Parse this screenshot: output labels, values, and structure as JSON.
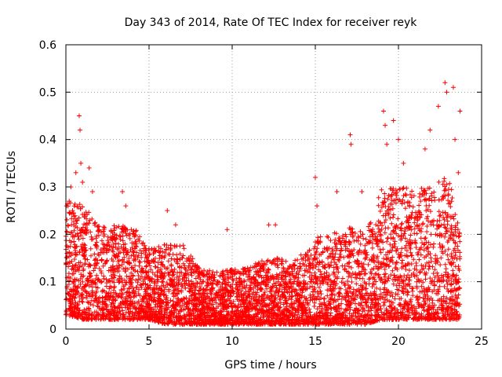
{
  "chart_data": {
    "type": "scatter",
    "title": "Day 343 of 2014, Rate Of TEC Index for receiver reyk",
    "xlabel": "GPS time / hours",
    "ylabel": "ROTI / TECUs",
    "xlim": [
      0,
      25
    ],
    "ylim": [
      0,
      0.6
    ],
    "x_ticks": [
      0,
      5,
      10,
      15,
      20,
      25
    ],
    "x_tick_labels": [
      "0",
      "5",
      "10",
      "15",
      "20",
      "25"
    ],
    "y_ticks": [
      0,
      0.1,
      0.2,
      0.3,
      0.4,
      0.5,
      0.6
    ],
    "y_tick_labels": [
      "0",
      "0.1",
      "0.2",
      "0.3",
      "0.4",
      "0.5",
      "0.6"
    ],
    "grid": true,
    "marker": "+",
    "color": "#ff0000",
    "series": [
      {
        "name": "ROTI",
        "notable_points": [
          {
            "x": 0.2,
            "y": 0.27
          },
          {
            "x": 0.3,
            "y": 0.3
          },
          {
            "x": 0.4,
            "y": 0.25
          },
          {
            "x": 0.6,
            "y": 0.33
          },
          {
            "x": 0.8,
            "y": 0.45
          },
          {
            "x": 0.85,
            "y": 0.42
          },
          {
            "x": 0.9,
            "y": 0.35
          },
          {
            "x": 1.0,
            "y": 0.31
          },
          {
            "x": 1.4,
            "y": 0.34
          },
          {
            "x": 1.6,
            "y": 0.29
          },
          {
            "x": 3.4,
            "y": 0.29
          },
          {
            "x": 3.6,
            "y": 0.26
          },
          {
            "x": 6.1,
            "y": 0.25
          },
          {
            "x": 6.6,
            "y": 0.22
          },
          {
            "x": 9.7,
            "y": 0.21
          },
          {
            "x": 12.2,
            "y": 0.22
          },
          {
            "x": 12.6,
            "y": 0.22
          },
          {
            "x": 15.0,
            "y": 0.32
          },
          {
            "x": 15.1,
            "y": 0.26
          },
          {
            "x": 16.3,
            "y": 0.29
          },
          {
            "x": 17.1,
            "y": 0.41
          },
          {
            "x": 17.15,
            "y": 0.39
          },
          {
            "x": 17.8,
            "y": 0.29
          },
          {
            "x": 19.1,
            "y": 0.46
          },
          {
            "x": 19.2,
            "y": 0.43
          },
          {
            "x": 19.7,
            "y": 0.44
          },
          {
            "x": 19.3,
            "y": 0.39
          },
          {
            "x": 20.0,
            "y": 0.4
          },
          {
            "x": 20.3,
            "y": 0.35
          },
          {
            "x": 21.6,
            "y": 0.38
          },
          {
            "x": 21.9,
            "y": 0.42
          },
          {
            "x": 22.4,
            "y": 0.47
          },
          {
            "x": 22.8,
            "y": 0.52
          },
          {
            "x": 22.9,
            "y": 0.5
          },
          {
            "x": 23.3,
            "y": 0.51
          },
          {
            "x": 23.7,
            "y": 0.46
          },
          {
            "x": 23.4,
            "y": 0.4
          },
          {
            "x": 23.6,
            "y": 0.33
          }
        ],
        "envelope": {
          "x": [
            0,
            1,
            2,
            3,
            4,
            5,
            6,
            7,
            8,
            9,
            10,
            11,
            12,
            13,
            14,
            15,
            16,
            17,
            18,
            19,
            20,
            21,
            22,
            23,
            23.7
          ],
          "y_min": [
            0.03,
            0.02,
            0.02,
            0.02,
            0.02,
            0.02,
            0.01,
            0.01,
            0.01,
            0.01,
            0.01,
            0.01,
            0.01,
            0.01,
            0.01,
            0.01,
            0.01,
            0.01,
            0.01,
            0.02,
            0.02,
            0.02,
            0.02,
            0.02,
            0.02
          ],
          "y_typical_max": [
            0.27,
            0.27,
            0.22,
            0.22,
            0.22,
            0.17,
            0.18,
            0.18,
            0.13,
            0.12,
            0.13,
            0.13,
            0.15,
            0.15,
            0.15,
            0.2,
            0.2,
            0.22,
            0.2,
            0.3,
            0.3,
            0.3,
            0.3,
            0.33,
            0.2
          ]
        }
      }
    ]
  }
}
